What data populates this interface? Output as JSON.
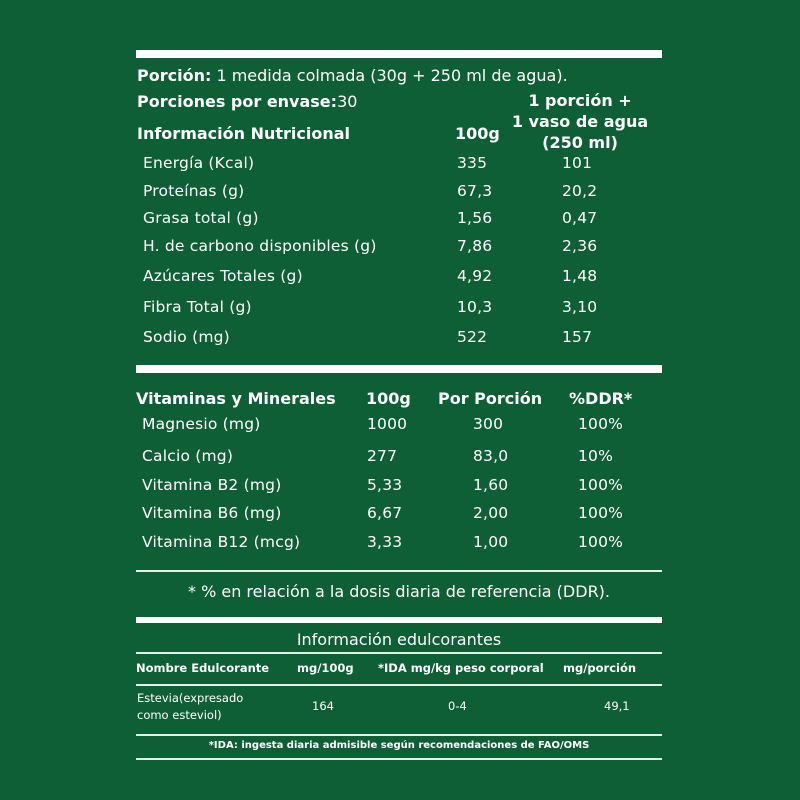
{
  "serving": {
    "portion_label": "Porción:",
    "portion_value": " 1 medida colmada (30g + 250 ml de agua).",
    "servings_label": "Porciones por envase:",
    "servings_value": "30"
  },
  "nutrition": {
    "title": "Información Nutricional",
    "col_100g": "100g",
    "col_portion_line1": "1 porción +",
    "col_portion_line2": "1 vaso de agua",
    "col_portion_line3": "(250 ml)",
    "rows": [
      {
        "label": "Energía (Kcal)",
        "per100": "335",
        "portion": "101"
      },
      {
        "label": "Proteínas (g)",
        "per100": "67,3",
        "portion": "20,2"
      },
      {
        "label": "Grasa total (g)",
        "per100": "1,56",
        "portion": "0,47"
      },
      {
        "label": "H. de carbono disponibles (g)",
        "per100": "7,86",
        "portion": "2,36"
      },
      {
        "label": "Azúcares Totales (g)",
        "per100": "4,92",
        "portion": "1,48"
      },
      {
        "label": "Fibra Total (g)",
        "per100": "10,3",
        "portion": "3,10"
      },
      {
        "label": "Sodio (mg)",
        "per100": "522",
        "portion": "157"
      }
    ]
  },
  "vitamins": {
    "title": "Vitaminas y Minerales",
    "col_100g": "100g",
    "col_portion": "Por Porción",
    "col_ddr": "%DDR*",
    "rows": [
      {
        "label": "Magnesio (mg)",
        "per100": "1000",
        "portion": "300",
        "ddr": "100%"
      },
      {
        "label": "Calcio (mg)",
        "per100": "277",
        "portion": "83,0",
        "ddr": "10%"
      },
      {
        "label": "Vitamina B2 (mg)",
        "per100": "5,33",
        "portion": "1,60",
        "ddr": "100%"
      },
      {
        "label": "Vitamina B6 (mg)",
        "per100": "6,67",
        "portion": "2,00",
        "ddr": "100%"
      },
      {
        "label": "Vitamina B12 (mcg)",
        "per100": "3,33",
        "portion": "1,00",
        "ddr": "100%"
      }
    ],
    "footnote": "* % en relación a la dosis diaria de referencia (DDR)."
  },
  "sweeteners": {
    "title": "Información edulcorantes",
    "headers": [
      "Nombre Edulcorante",
      "mg/100g",
      "*IDA mg/kg peso corporal",
      "mg/porción"
    ],
    "rows": [
      {
        "name_line1": "Estevia(expresado",
        "name_line2": "como esteviol)",
        "per100": "164",
        "ida": "0-4",
        "portion": "49,1"
      }
    ],
    "footnote": "*IDA: ingesta diaria admisible según recomendaciones de FAO/OMS"
  },
  "colors": {
    "background": "#0f5f36",
    "foreground": "#ffffff"
  }
}
